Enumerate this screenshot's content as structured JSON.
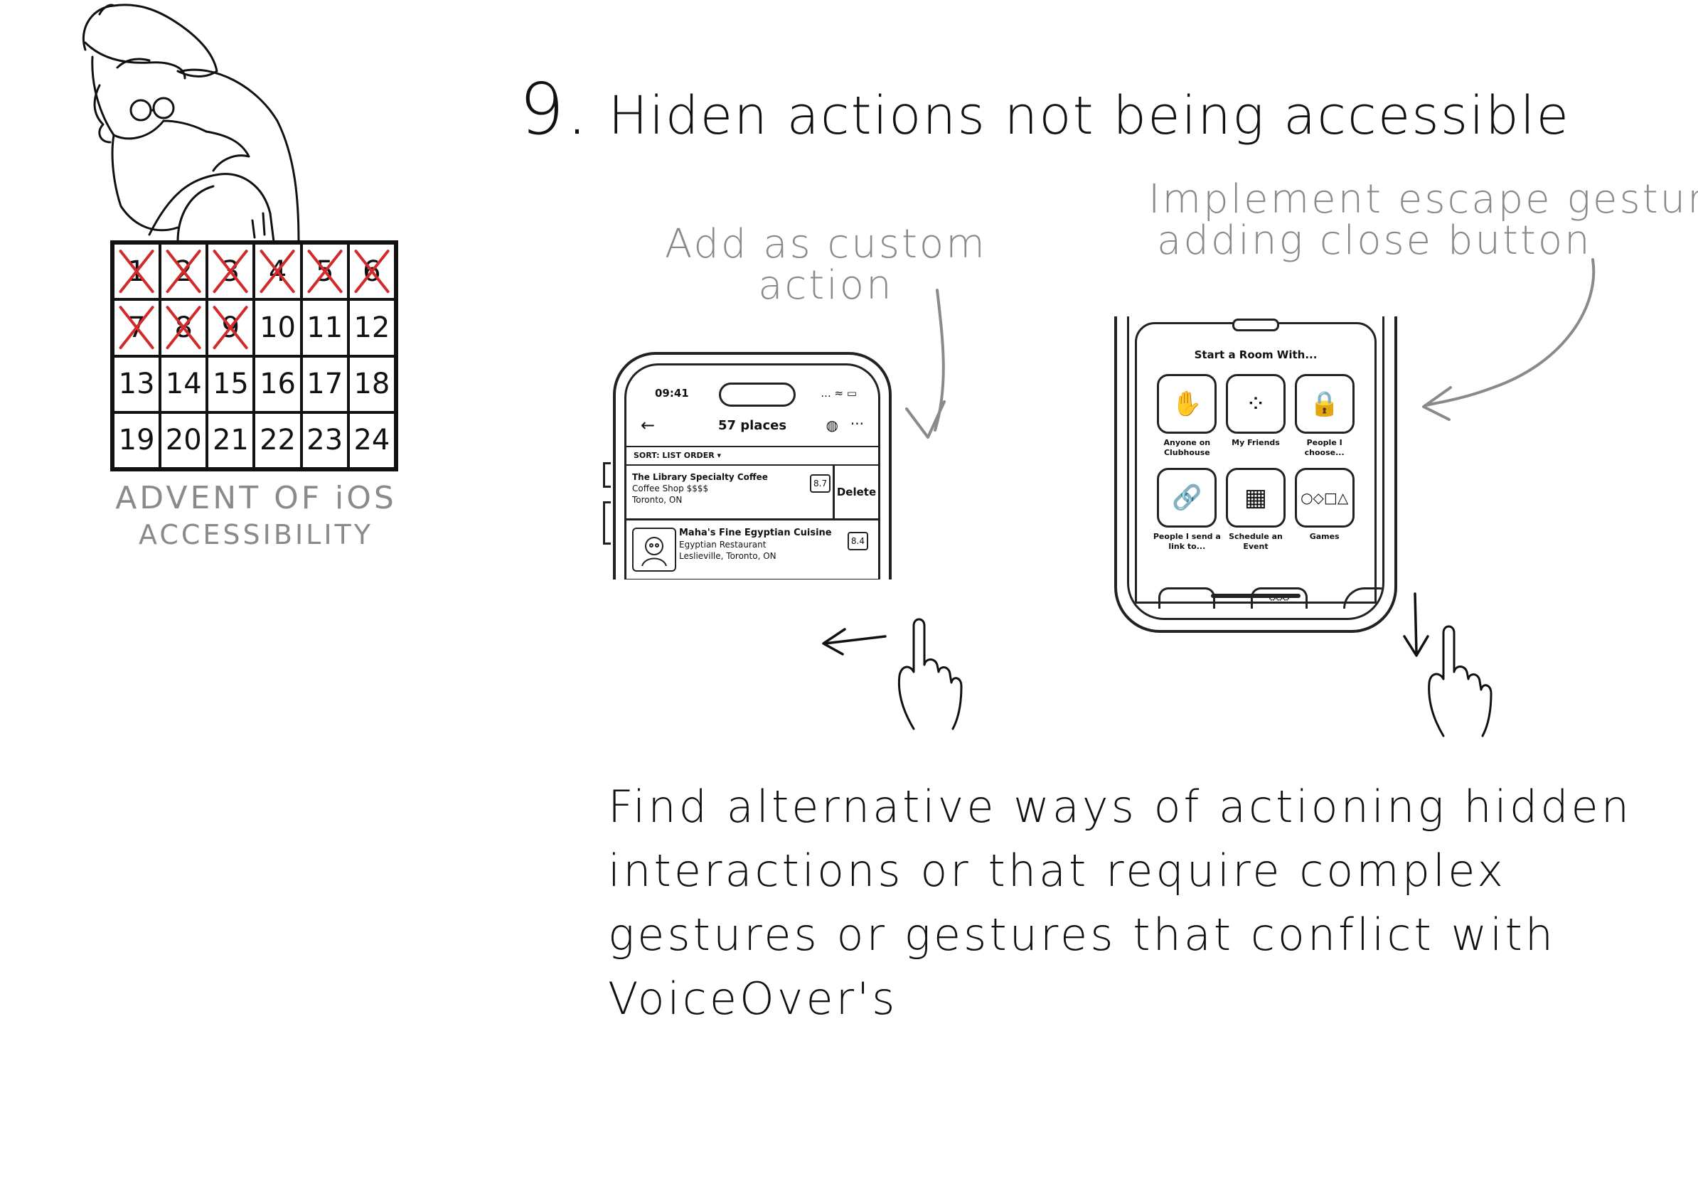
{
  "heading": {
    "number": "9.",
    "text": "Hiden actions not being accessible"
  },
  "calendar": {
    "days": [
      {
        "n": "1",
        "crossed": true
      },
      {
        "n": "2",
        "crossed": true
      },
      {
        "n": "3",
        "crossed": true
      },
      {
        "n": "4",
        "crossed": true
      },
      {
        "n": "5",
        "crossed": true
      },
      {
        "n": "6",
        "crossed": true
      },
      {
        "n": "7",
        "crossed": true
      },
      {
        "n": "8",
        "crossed": true
      },
      {
        "n": "9",
        "crossed": true
      },
      {
        "n": "10",
        "crossed": false
      },
      {
        "n": "11",
        "crossed": false
      },
      {
        "n": "12",
        "crossed": false
      },
      {
        "n": "13",
        "crossed": false
      },
      {
        "n": "14",
        "crossed": false
      },
      {
        "n": "15",
        "crossed": false
      },
      {
        "n": "16",
        "crossed": false
      },
      {
        "n": "17",
        "crossed": false
      },
      {
        "n": "18",
        "crossed": false
      },
      {
        "n": "19",
        "crossed": false
      },
      {
        "n": "20",
        "crossed": false
      },
      {
        "n": "21",
        "crossed": false
      },
      {
        "n": "22",
        "crossed": false
      },
      {
        "n": "23",
        "crossed": false
      },
      {
        "n": "24",
        "crossed": false
      }
    ],
    "caption_line1": "ADVENT OF iOS",
    "caption_line2": "ACCESSIBILITY"
  },
  "annotations": {
    "custom_action_line1": "Add as custom",
    "custom_action_line2": "action",
    "escape_line1": "Implement escape gesture,",
    "escape_line2": "adding close button"
  },
  "phone_list": {
    "time": "09:41",
    "signal": "... ≈ ▭",
    "title": "57 places",
    "back_icon": "←",
    "globe_icon": "◍",
    "more_icon": "···",
    "sort_label": "SORT: LIST ORDER ▾",
    "item1": {
      "name": "The Library Specialty Coffee",
      "category": "Coffee Shop $$$$",
      "location": "Toronto, ON",
      "score": "8.7",
      "delete_label": "Delete"
    },
    "item2": {
      "name": "Maha's Fine Egyptian Cuisine",
      "category": "Egyptian Restaurant",
      "location": "Leslieville, Toronto, ON",
      "score": "8.4"
    }
  },
  "phone_rooms": {
    "title": "Start a Room With...",
    "options": [
      {
        "icon": "✋",
        "label": "Anyone on Clubhouse"
      },
      {
        "icon": "⁘",
        "label": "My Friends"
      },
      {
        "icon": "🔒",
        "label": "People I choose..."
      },
      {
        "icon": "🔗",
        "label": "People I send a link to..."
      },
      {
        "icon": "▦",
        "label": "Schedule an Event"
      },
      {
        "icon": "○◇□△",
        "label": "Games"
      }
    ]
  },
  "body": {
    "line1": "Find alternative ways of actioning hidden",
    "line2": "interactions or that require complex",
    "line3": "gestures or gestures that conflict with",
    "line4": "VoiceOver's"
  },
  "colors": {
    "ink": "#111111",
    "pencil_gray": "#8a8a8a",
    "cross_red": "#d12a2a"
  }
}
